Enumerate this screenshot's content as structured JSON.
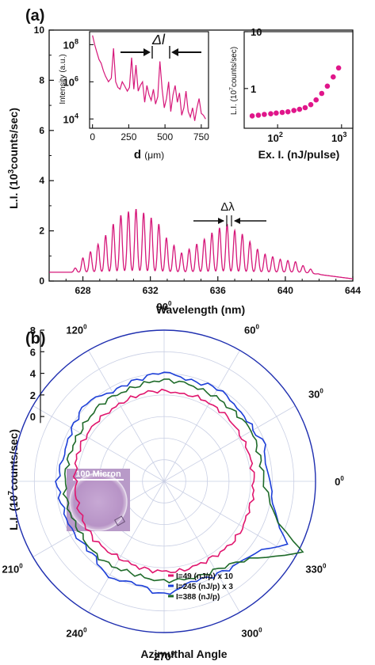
{
  "chart_data": [
    {
      "panel": "(a)",
      "type": "line",
      "xlabel": "Wavelength (nm)",
      "ylabel": "L.I. (10",
      "ylabel_sup": "3",
      "ylabel_tail": "counts/sec)",
      "xlim": [
        626,
        644
      ],
      "ylim": [
        0,
        10
      ],
      "xticks": [
        "628",
        "632",
        "636",
        "640",
        "644"
      ],
      "yticks": [
        "0",
        "2",
        "4",
        "6",
        "8",
        "10"
      ],
      "annotation": "Δλ",
      "color": "#d6187a",
      "peaks": {
        "x": [
          627.55,
          628.0,
          628.45,
          628.9,
          629.35,
          629.8,
          630.25,
          630.7,
          631.15,
          631.6,
          632.05,
          632.5,
          632.95,
          633.4,
          633.85,
          634.3,
          634.75,
          635.2,
          635.65,
          636.1,
          636.55,
          637.0,
          637.45,
          637.9,
          638.35,
          638.8,
          639.25,
          639.7,
          640.15,
          640.6,
          641.05,
          641.5,
          641.95
        ],
        "y": [
          0.45,
          0.85,
          1.1,
          1.4,
          1.75,
          2.2,
          2.55,
          2.7,
          2.8,
          2.65,
          2.45,
          2.2,
          1.65,
          1.35,
          1.05,
          1.2,
          1.4,
          1.6,
          1.85,
          2.05,
          2.2,
          1.95,
          1.8,
          1.5,
          1.2,
          1.0,
          0.9,
          0.8,
          0.75,
          0.7,
          0.55,
          0.45,
          0.3
        ]
      },
      "baseline": 0.35
    },
    {
      "panel": "inset-left",
      "type": "line",
      "xlabel": "d",
      "xlabel_unit": "(μm)",
      "ylabel": "Intensity (a.u.)",
      "xlim": [
        -20,
        800
      ],
      "ylog": [
        3.5,
        8.7
      ],
      "xticks": [
        "0",
        "250",
        "500",
        "750"
      ],
      "yticks": [
        "10",
        "10",
        "10"
      ],
      "ytick_exp": [
        "4",
        "6",
        "8"
      ],
      "annotation": "Δl",
      "color": "#d6187a",
      "x": [
        0,
        15,
        30,
        45,
        60,
        75,
        90,
        110,
        130,
        145,
        160,
        175,
        190,
        205,
        220,
        240,
        255,
        270,
        285,
        300,
        315,
        330,
        345,
        360,
        375,
        390,
        405,
        420,
        435,
        450,
        465,
        480,
        495,
        510,
        525,
        540,
        555,
        570,
        585,
        600,
        615,
        630,
        645,
        660,
        675,
        690,
        705,
        720,
        735,
        750,
        765,
        780
      ],
      "y": [
        8.5,
        8.0,
        7.6,
        7.2,
        7.0,
        6.6,
        6.3,
        6.0,
        6.2,
        7.8,
        6.0,
        5.7,
        5.6,
        6.0,
        5.8,
        5.5,
        5.7,
        7.3,
        5.6,
        6.9,
        5.5,
        5.8,
        6.0,
        4.9,
        5.8,
        5.3,
        5.0,
        5.6,
        4.8,
        5.2,
        7.1,
        5.6,
        4.6,
        5.1,
        6.0,
        4.4,
        5.3,
        5.8,
        4.9,
        5.4,
        4.2,
        4.6,
        5.5,
        4.4,
        4.1,
        4.6,
        3.9,
        4.6,
        5.1,
        4.3,
        4.2,
        4.0
      ]
    },
    {
      "panel": "inset-right",
      "type": "scatter",
      "xlabel": "Ex. I. (nJ/pulse)",
      "ylabel": "L.I. (10",
      "ylabel_sup": "7",
      "ylabel_tail": "counts/sec)",
      "xlog": [
        30,
        1500
      ],
      "ylog": [
        0.2,
        10
      ],
      "xticks": [
        "10",
        "10"
      ],
      "xtick_exp": [
        "2",
        "3"
      ],
      "yticks": [
        "1",
        "10"
      ],
      "color": "#e0168a",
      "x": [
        40,
        50,
        62,
        78,
        95,
        118,
        145,
        180,
        220,
        270,
        330,
        400,
        490,
        600,
        740,
        900
      ],
      "y": [
        0.33,
        0.34,
        0.35,
        0.36,
        0.37,
        0.38,
        0.39,
        0.41,
        0.43,
        0.46,
        0.52,
        0.63,
        0.82,
        1.1,
        1.6,
        2.3
      ]
    },
    {
      "panel": "(b)",
      "type": "polar",
      "ylabel": "L.I. (10",
      "ylabel_sup": "7",
      "ylabel_tail": "counts/sec)",
      "xlabel": "Azimuthal Angle",
      "rlim": [
        -6,
        8
      ],
      "rticks": [
        "0",
        "2",
        "4",
        "6",
        "8"
      ],
      "angle_labels": [
        "0",
        "30",
        "60",
        "90",
        "120",
        "150",
        "180",
        "210",
        "240",
        "270",
        "300",
        "330"
      ],
      "angle_label_visible": [
        true,
        true,
        true,
        true,
        true,
        false,
        false,
        true,
        true,
        true,
        true,
        true
      ],
      "degree_sign": "0",
      "inset_label": "100 Micron",
      "series": [
        {
          "name": "I=49  (nJ/p)  x 10",
          "color": "#e0166e",
          "angles": [
            0,
            20,
            40,
            60,
            80,
            100,
            120,
            140,
            160,
            180,
            200,
            220,
            240,
            260,
            280,
            300,
            320,
            340,
            360
          ],
          "r": [
            2.3,
            2.2,
            2.3,
            2.4,
            2.3,
            2.4,
            2.2,
            2.3,
            2.4,
            2.2,
            2.3,
            2.4,
            2.2,
            2.3,
            2.4,
            2.3,
            2.5,
            2.3,
            2.3
          ]
        },
        {
          "name": "I=245  (nJ/p)  x 3",
          "color": "#1d3fd8",
          "angles": [
            0,
            10,
            20,
            30,
            45,
            60,
            75,
            90,
            105,
            120,
            135,
            150,
            165,
            180,
            195,
            210,
            225,
            240,
            255,
            270,
            285,
            300,
            315,
            325,
            333,
            338,
            345,
            352,
            360
          ],
          "r": [
            3.8,
            3.4,
            3.9,
            3.5,
            3.6,
            3.9,
            3.6,
            4.1,
            3.7,
            3.6,
            4.2,
            3.8,
            3.5,
            3.9,
            3.7,
            3.6,
            3.4,
            4.2,
            3.8,
            4.5,
            3.6,
            3.9,
            4.3,
            5.0,
            6.8,
            5.5,
            4.6,
            4.0,
            3.8
          ]
        },
        {
          "name": "I=388  (nJ/p)",
          "color": "#1f6b2a",
          "angles": [
            0,
            15,
            30,
            50,
            70,
            90,
            110,
            130,
            150,
            170,
            190,
            210,
            230,
            250,
            270,
            290,
            305,
            318,
            326,
            331,
            333,
            335,
            340,
            348,
            360
          ],
          "r": [
            3.2,
            3.1,
            3.3,
            3.1,
            3.2,
            3.4,
            3.1,
            3.2,
            3.0,
            3.1,
            3.2,
            3.1,
            3.3,
            3.0,
            3.2,
            3.3,
            3.6,
            4.6,
            6.4,
            7.8,
            8.4,
            7.2,
            5.2,
            4.0,
            3.2
          ]
        }
      ]
    }
  ]
}
